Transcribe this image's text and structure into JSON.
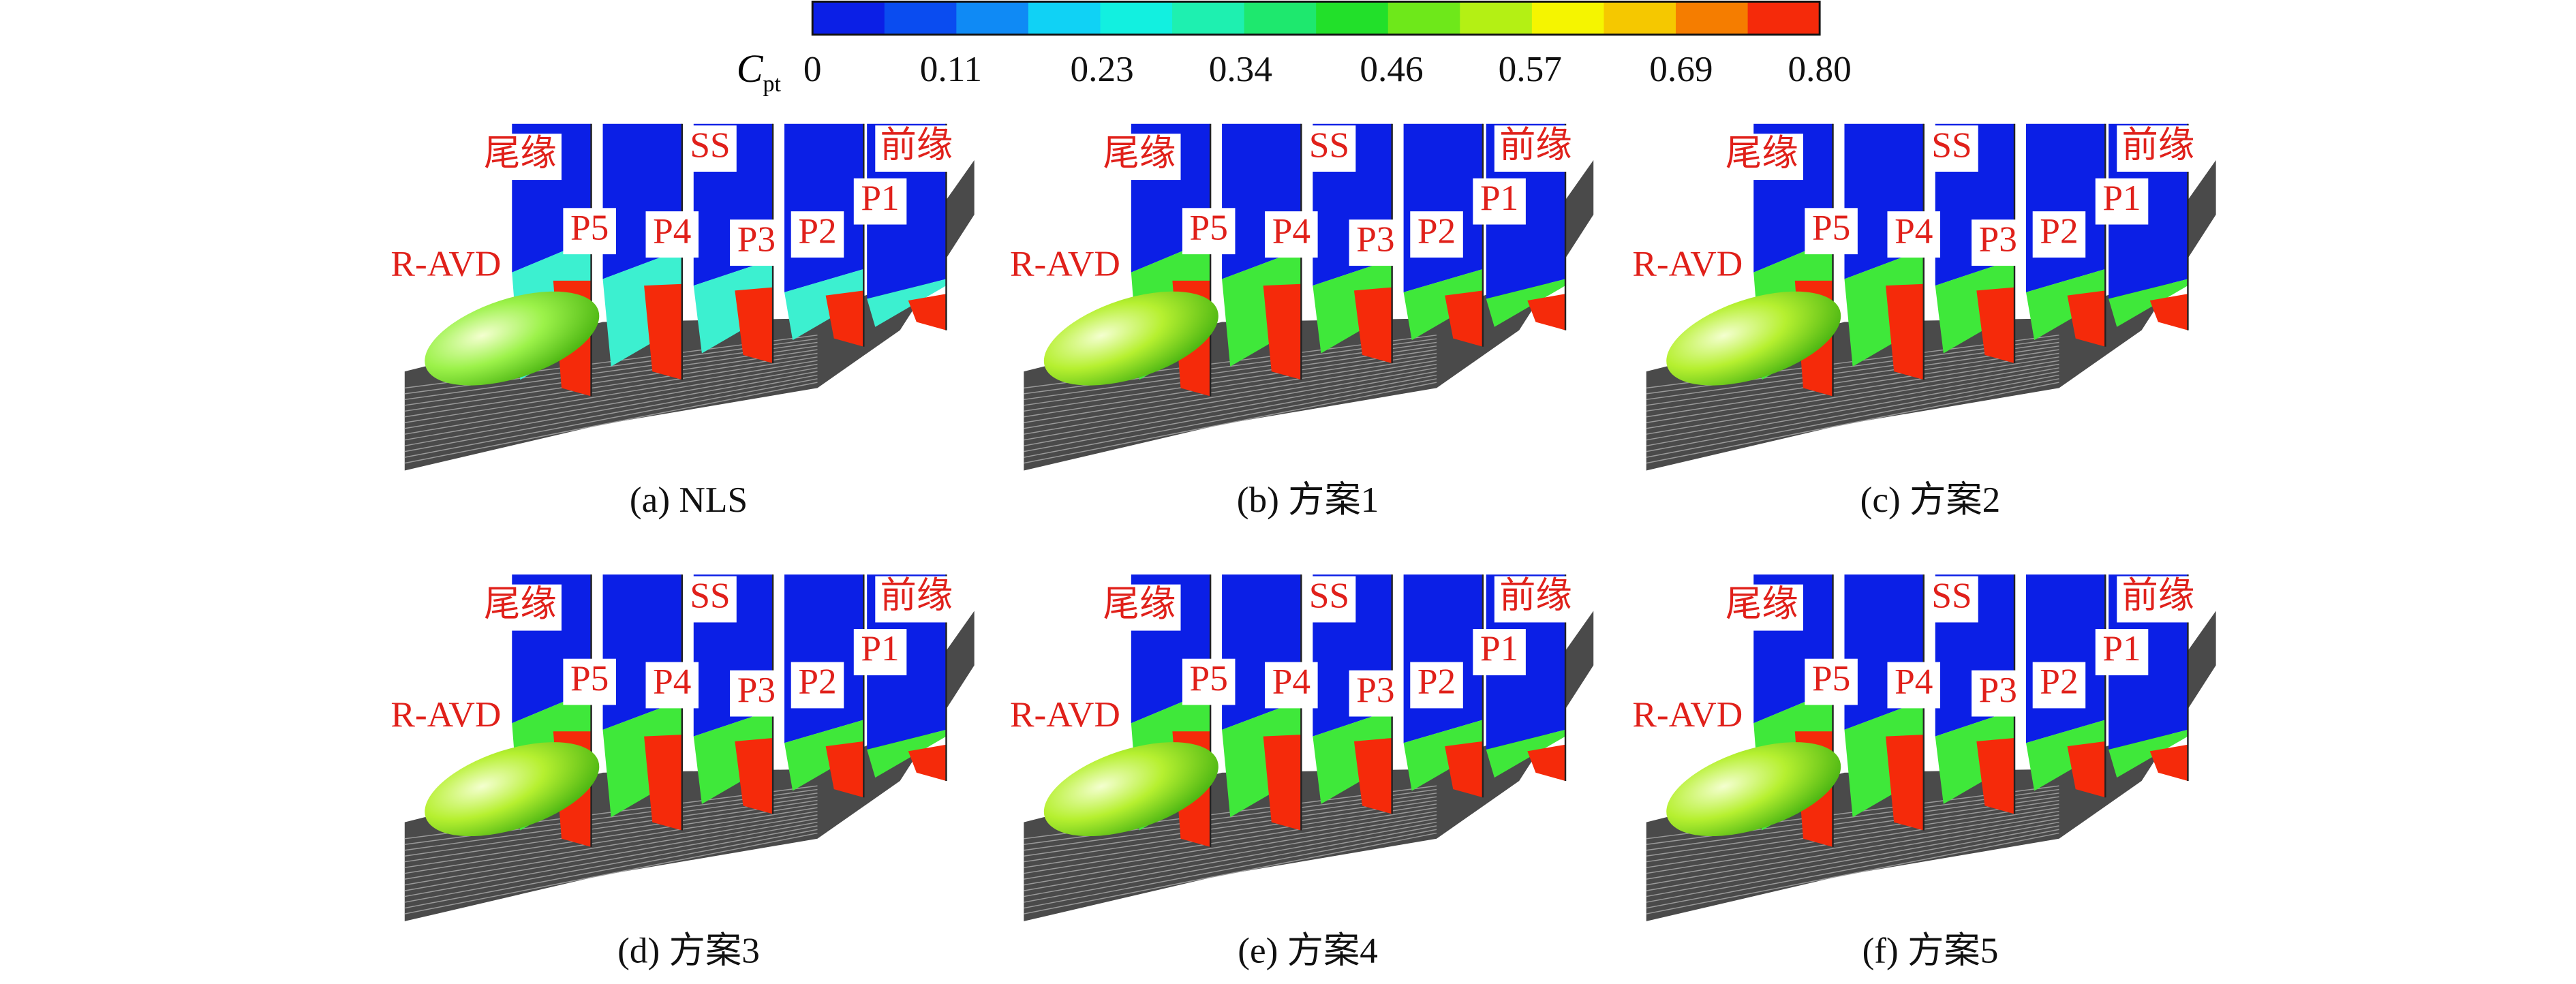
{
  "colorbar": {
    "label": "C",
    "label_subscript": "pt",
    "range": [
      0,
      0.8
    ],
    "ticks": [
      0,
      0.11,
      0.23,
      0.34,
      0.46,
      0.57,
      0.69,
      {
        "value": 0.8,
        "label": "0.80"
      }
    ],
    "colors": [
      "#0b1fe6",
      "#0a4cf0",
      "#0f8af5",
      "#10d2f5",
      "#12f0e0",
      "#1ef0b0",
      "#1ee86e",
      "#22e02a",
      "#6ee81a",
      "#b4f014",
      "#f5f500",
      "#f5c800",
      "#f57d00",
      "#f52a0a"
    ]
  },
  "panels": [
    {
      "caption": "(a) NLS",
      "vortex_color": "#3cf0d0",
      "labels": [
        "尾缘",
        "SS",
        "前缘",
        "P5",
        "P4",
        "P3",
        "P2",
        "P1",
        "R-AVD"
      ]
    },
    {
      "caption": "(b) 方案1",
      "vortex_color": "#3fe83a",
      "labels": [
        "尾缘",
        "SS",
        "前缘",
        "P5",
        "P4",
        "P3",
        "P2",
        "P1",
        "R-AVD"
      ]
    },
    {
      "caption": "(c) 方案2",
      "vortex_color": "#3fe83a",
      "labels": [
        "尾缘",
        "SS",
        "前缘",
        "P5",
        "P4",
        "P3",
        "P2",
        "P1",
        "R-AVD"
      ]
    },
    {
      "caption": "(d) 方案3",
      "vortex_color": "#3fe83a",
      "labels": [
        "尾缘",
        "SS",
        "前缘",
        "P5",
        "P4",
        "P3",
        "P2",
        "P1",
        "R-AVD"
      ]
    },
    {
      "caption": "(e) 方案4",
      "vortex_color": "#3fe83a",
      "labels": [
        "尾缘",
        "SS",
        "前缘",
        "P5",
        "P4",
        "P3",
        "P2",
        "P1",
        "R-AVD"
      ]
    },
    {
      "caption": "(f) 方案5",
      "vortex_color": "#3fe83a",
      "labels": [
        "尾缘",
        "SS",
        "前缘",
        "P5",
        "P4",
        "P3",
        "P2",
        "P1",
        "R-AVD"
      ]
    }
  ]
}
